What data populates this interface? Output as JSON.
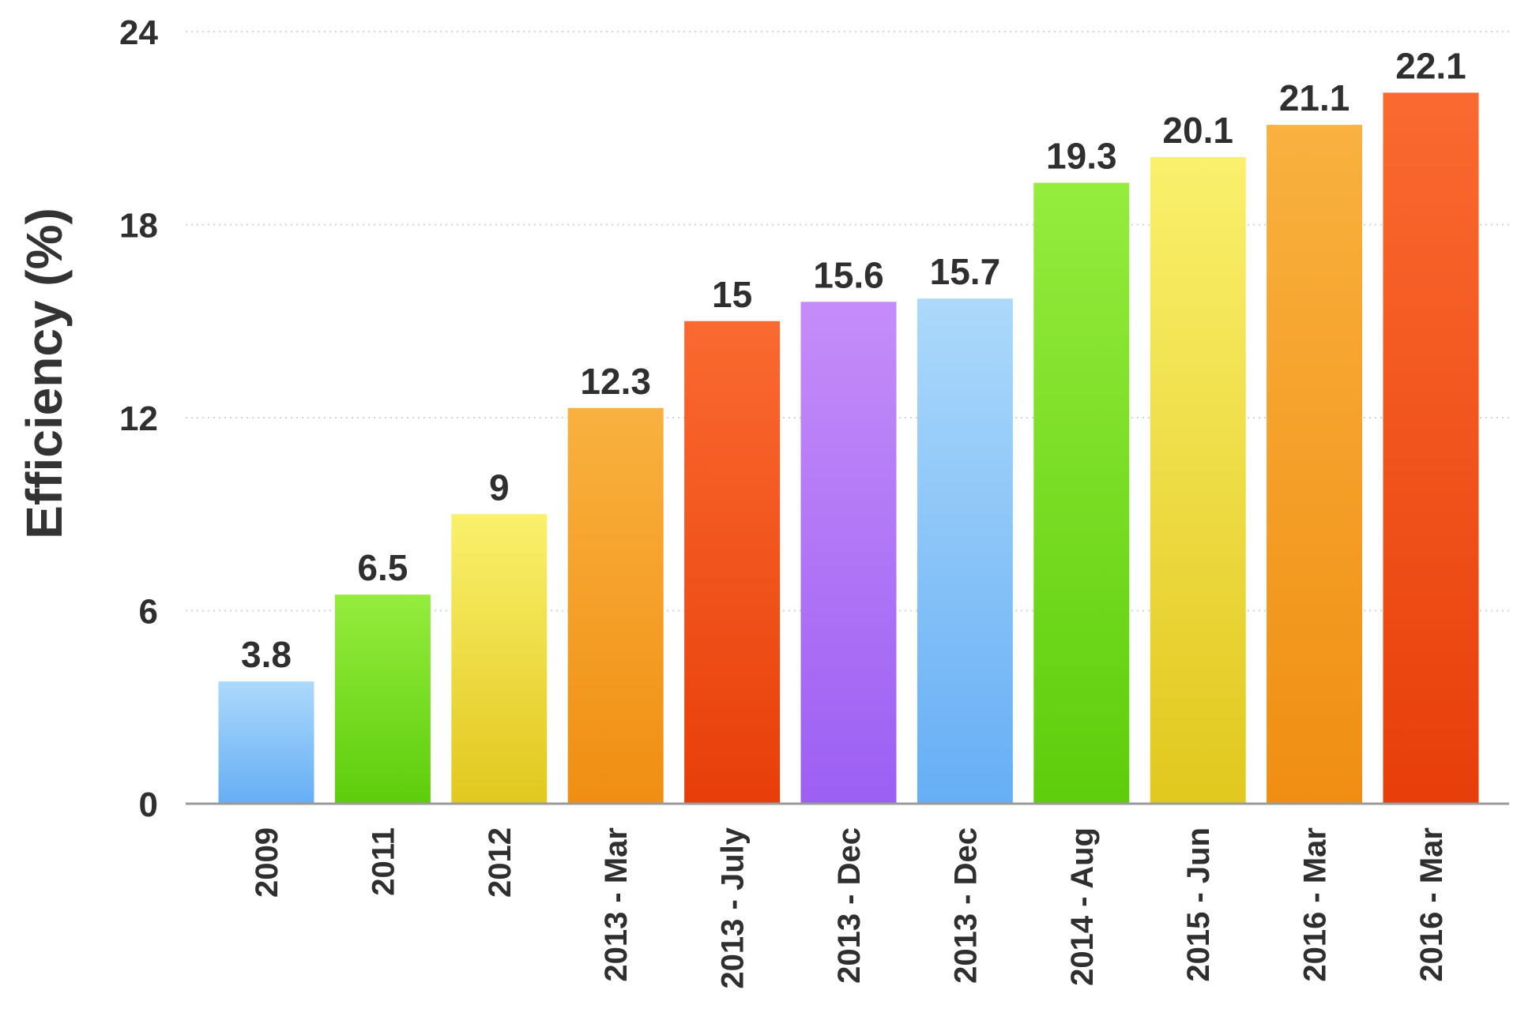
{
  "chart_data": {
    "type": "bar",
    "title": "",
    "xlabel": "",
    "ylabel": "Efficiency (%)",
    "ylim": [
      0,
      24
    ],
    "yticks": [
      0,
      6,
      12,
      18,
      24
    ],
    "grid": true,
    "categories": [
      "2009",
      "2011",
      "2012",
      "2013 - Mar",
      "2013 - July",
      "2013 - Dec",
      "2013 - Dec",
      "2014 - Aug",
      "2015 - Jun",
      "2016 - Mar",
      "2016 - Mar"
    ],
    "values": [
      3.8,
      6.5,
      9,
      12.3,
      15,
      15.6,
      15.7,
      19.3,
      20.1,
      21.1,
      22.1
    ],
    "value_labels": [
      "3.8",
      "6.5",
      "9",
      "12.3",
      "15",
      "15.6",
      "15.7",
      "19.3",
      "20.1",
      "21.1",
      "22.1"
    ],
    "colors": [
      [
        "#acd9fb",
        "#66aef5"
      ],
      [
        "#95ec3d",
        "#5dcd0b"
      ],
      [
        "#faf06c",
        "#e2c81e"
      ],
      [
        "#f9b13f",
        "#f08e12"
      ],
      [
        "#fa6a30",
        "#e83e09"
      ],
      [
        "#c58cf9",
        "#9c5ff3"
      ],
      [
        "#acd9fb",
        "#66aef5"
      ],
      [
        "#95ec3d",
        "#5dcd0b"
      ],
      [
        "#faf06c",
        "#e2c81e"
      ],
      [
        "#f9b13f",
        "#f08e12"
      ],
      [
        "#fa6a30",
        "#e83e09"
      ]
    ]
  }
}
